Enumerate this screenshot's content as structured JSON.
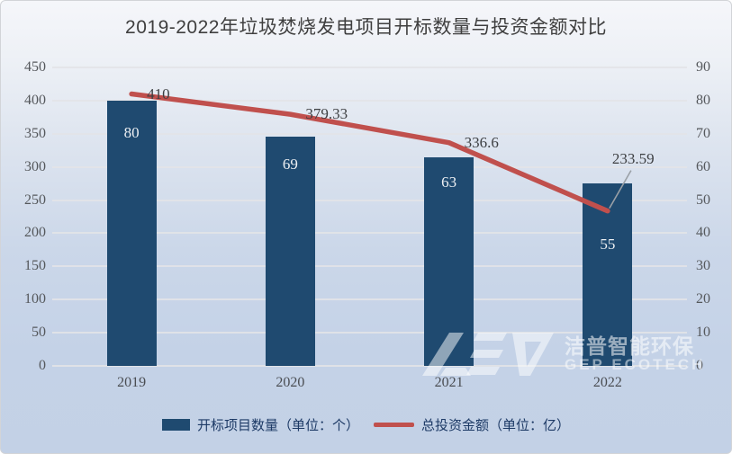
{
  "title": "2019-2022年垃圾焚烧发电项目开标数量与投资金额对比",
  "chart_data": {
    "type": "combo_bar_line",
    "categories": [
      "2019",
      "2020",
      "2021",
      "2022"
    ],
    "series": [
      {
        "name": "开标项目数量（单位：个）",
        "type": "bar",
        "axis": "right",
        "values": [
          80,
          69,
          63,
          55
        ],
        "labels": [
          "80",
          "69",
          "63",
          "55"
        ],
        "color": "#1f4a70",
        "label_color": "#edf0f3"
      },
      {
        "name": "总投资金额（单位：亿）",
        "type": "line",
        "axis": "left",
        "values": [
          410,
          379.33,
          336.6,
          233.59
        ],
        "labels": [
          "410",
          "379.33",
          "336.6",
          "233.59"
        ],
        "color": "#c0504d",
        "label_color": "#3d3f42"
      }
    ],
    "left_axis": {
      "min": 0,
      "max": 450,
      "step": 50,
      "ticks": [
        "0",
        "50",
        "100",
        "150",
        "200",
        "250",
        "300",
        "350",
        "400",
        "450"
      ]
    },
    "right_axis": {
      "min": 0,
      "max": 90,
      "step": 10,
      "ticks": [
        "0",
        "10",
        "20",
        "30",
        "40",
        "50",
        "60",
        "70",
        "80",
        "90"
      ]
    },
    "grid": true,
    "legend_position": "bottom"
  },
  "watermark": {
    "logo": "gep-logo",
    "cn": "洁普智能环保",
    "en": "GEP ECOTECH"
  }
}
